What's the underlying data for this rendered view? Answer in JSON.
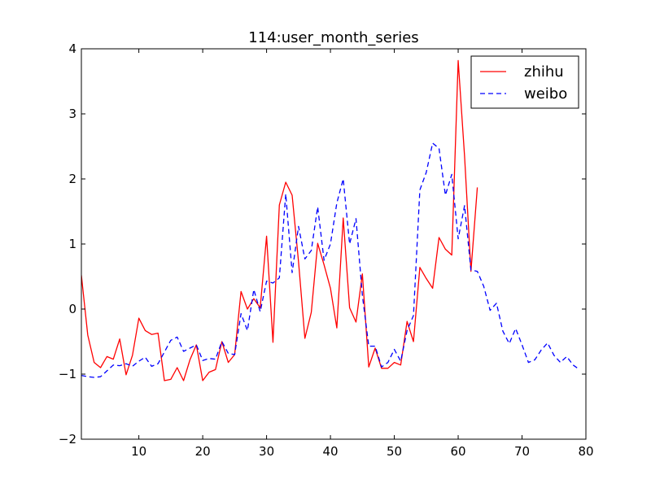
{
  "chart_data": {
    "type": "line",
    "title": "114:user_month_series",
    "xlabel": "",
    "ylabel": "",
    "xlim": [
      1,
      80
    ],
    "ylim": [
      -2,
      4
    ],
    "xticks": [
      10,
      20,
      30,
      40,
      50,
      60,
      70,
      80
    ],
    "yticks": [
      -2,
      -1,
      0,
      1,
      2,
      3,
      4
    ],
    "xtick_labels": [
      "10",
      "20",
      "30",
      "40",
      "50",
      "60",
      "70",
      "80"
    ],
    "ytick_labels": [
      "−2",
      "−1",
      "0",
      "1",
      "2",
      "3",
      "4"
    ],
    "grid": false,
    "legend_position": "top-right",
    "series": [
      {
        "name": "zhihu",
        "color": "#ff0000",
        "linestyle": "solid",
        "x": [
          1,
          2,
          3,
          4,
          5,
          6,
          7,
          8,
          9,
          10,
          11,
          12,
          13,
          14,
          15,
          16,
          17,
          18,
          19,
          20,
          21,
          22,
          23,
          24,
          25,
          26,
          27,
          28,
          29,
          30,
          31,
          32,
          33,
          34,
          35,
          36,
          37,
          38,
          39,
          40,
          41,
          42,
          43,
          44,
          45,
          46,
          47,
          48,
          49,
          50,
          51,
          52,
          53,
          54,
          55,
          56,
          57,
          58,
          59,
          60,
          61,
          62,
          63
        ],
        "values": [
          0.52,
          -0.4,
          -0.82,
          -0.9,
          -0.73,
          -0.77,
          -0.46,
          -1.01,
          -0.71,
          -0.14,
          -0.33,
          -0.39,
          -0.37,
          -1.1,
          -1.08,
          -0.9,
          -1.1,
          -0.78,
          -0.55,
          -1.1,
          -0.97,
          -0.93,
          -0.5,
          -0.82,
          -0.7,
          0.27,
          0.0,
          0.16,
          0.02,
          1.12,
          -0.51,
          1.6,
          1.95,
          1.75,
          0.73,
          -0.45,
          -0.05,
          1.01,
          0.68,
          0.32,
          -0.29,
          1.4,
          0.02,
          -0.2,
          0.54,
          -0.89,
          -0.6,
          -0.91,
          -0.91,
          -0.82,
          -0.86,
          -0.19,
          -0.5,
          0.64,
          0.47,
          0.32,
          1.1,
          0.92,
          0.83,
          3.82,
          2.35,
          0.58,
          1.87
        ]
      },
      {
        "name": "weibo",
        "color": "#0000ff",
        "linestyle": "dashed",
        "x": [
          1,
          2,
          3,
          4,
          5,
          6,
          7,
          8,
          9,
          10,
          11,
          12,
          13,
          14,
          15,
          16,
          17,
          18,
          19,
          20,
          21,
          22,
          23,
          24,
          25,
          26,
          27,
          28,
          29,
          30,
          31,
          32,
          33,
          34,
          35,
          36,
          37,
          38,
          39,
          40,
          41,
          42,
          43,
          44,
          45,
          46,
          47,
          48,
          49,
          50,
          51,
          52,
          53,
          54,
          55,
          56,
          57,
          58,
          59,
          60,
          61,
          62,
          63,
          64,
          65,
          66,
          67,
          68,
          69,
          70,
          71,
          72,
          73,
          74,
          75,
          76,
          77,
          78,
          79
        ],
        "values": [
          -1.02,
          -1.04,
          -1.05,
          -1.04,
          -0.95,
          -0.86,
          -0.87,
          -0.84,
          -0.88,
          -0.8,
          -0.74,
          -0.88,
          -0.84,
          -0.66,
          -0.48,
          -0.43,
          -0.65,
          -0.6,
          -0.55,
          -0.79,
          -0.76,
          -0.77,
          -0.5,
          -0.68,
          -0.7,
          -0.07,
          -0.33,
          0.3,
          -0.04,
          0.43,
          0.4,
          0.48,
          1.77,
          0.56,
          1.27,
          0.77,
          0.9,
          1.57,
          0.75,
          1.0,
          1.63,
          2.0,
          1.0,
          1.39,
          0.21,
          -0.57,
          -0.57,
          -0.89,
          -0.82,
          -0.62,
          -0.8,
          -0.33,
          -0.1,
          1.83,
          2.1,
          2.55,
          2.47,
          1.75,
          2.07,
          1.08,
          1.59,
          0.6,
          0.58,
          0.35,
          -0.02,
          0.09,
          -0.34,
          -0.53,
          -0.3,
          -0.55,
          -0.82,
          -0.78,
          -0.63,
          -0.52,
          -0.71,
          -0.82,
          -0.73,
          -0.86,
          -0.93
        ]
      }
    ]
  }
}
